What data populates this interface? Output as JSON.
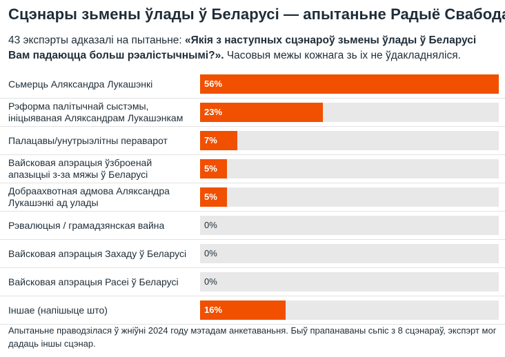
{
  "chart_data": {
    "type": "bar",
    "title": "Сцэнары зьмены ўлады ў Беларусі — апытаньне Радыё Свабода",
    "subtitle_prefix": "43 экспэрты адказалі на пытаньне: ",
    "subtitle_question": "«Якія з наступных сцэнароў зьмены ўлады ў Беларусі Вам падаюцца больш рэалістычнымі?».",
    "subtitle_suffix": " Часовыя межы кожнага зь іх не ўдакладняліся.",
    "categories": [
      "Сьмерць Аляксандра Лукашэнкі",
      "Рэформа палітычнай сыстэмы, ініцыяваная Аляксандрам Лукашэнкам",
      "Палацавы/унутрыэлітны пераварот",
      "Вайсковая апэрацыя ўзброенай апазыцыі з-за мяжы ў Беларусі",
      "Добраахвотная адмова Аляксандра Лукашэнкі ад улады",
      "Рэвалюцыя / грамадзянская вайна",
      "Вайсковая апэрацыя Захаду ў Беларусі",
      "Вайсковая апэрацыя Расеі ў Беларусі",
      "Іншае (напішыце што)"
    ],
    "values": [
      56,
      23,
      7,
      5,
      5,
      0,
      0,
      0,
      16
    ],
    "value_labels": [
      "56%",
      "23%",
      "7%",
      "5%",
      "5%",
      "0%",
      "0%",
      "0%",
      "16%"
    ],
    "xlim": [
      0,
      56
    ],
    "bar_color": "#f05000",
    "track_color": "#e8e8e8",
    "note": "Апытаньне праводзілася ў жніўні 2024 году мэтадам анкетаваньня. Быў прапанаваны сьпіс з 8 сцэнараў, экспэрт мог дадаць іншы сцэнар."
  }
}
